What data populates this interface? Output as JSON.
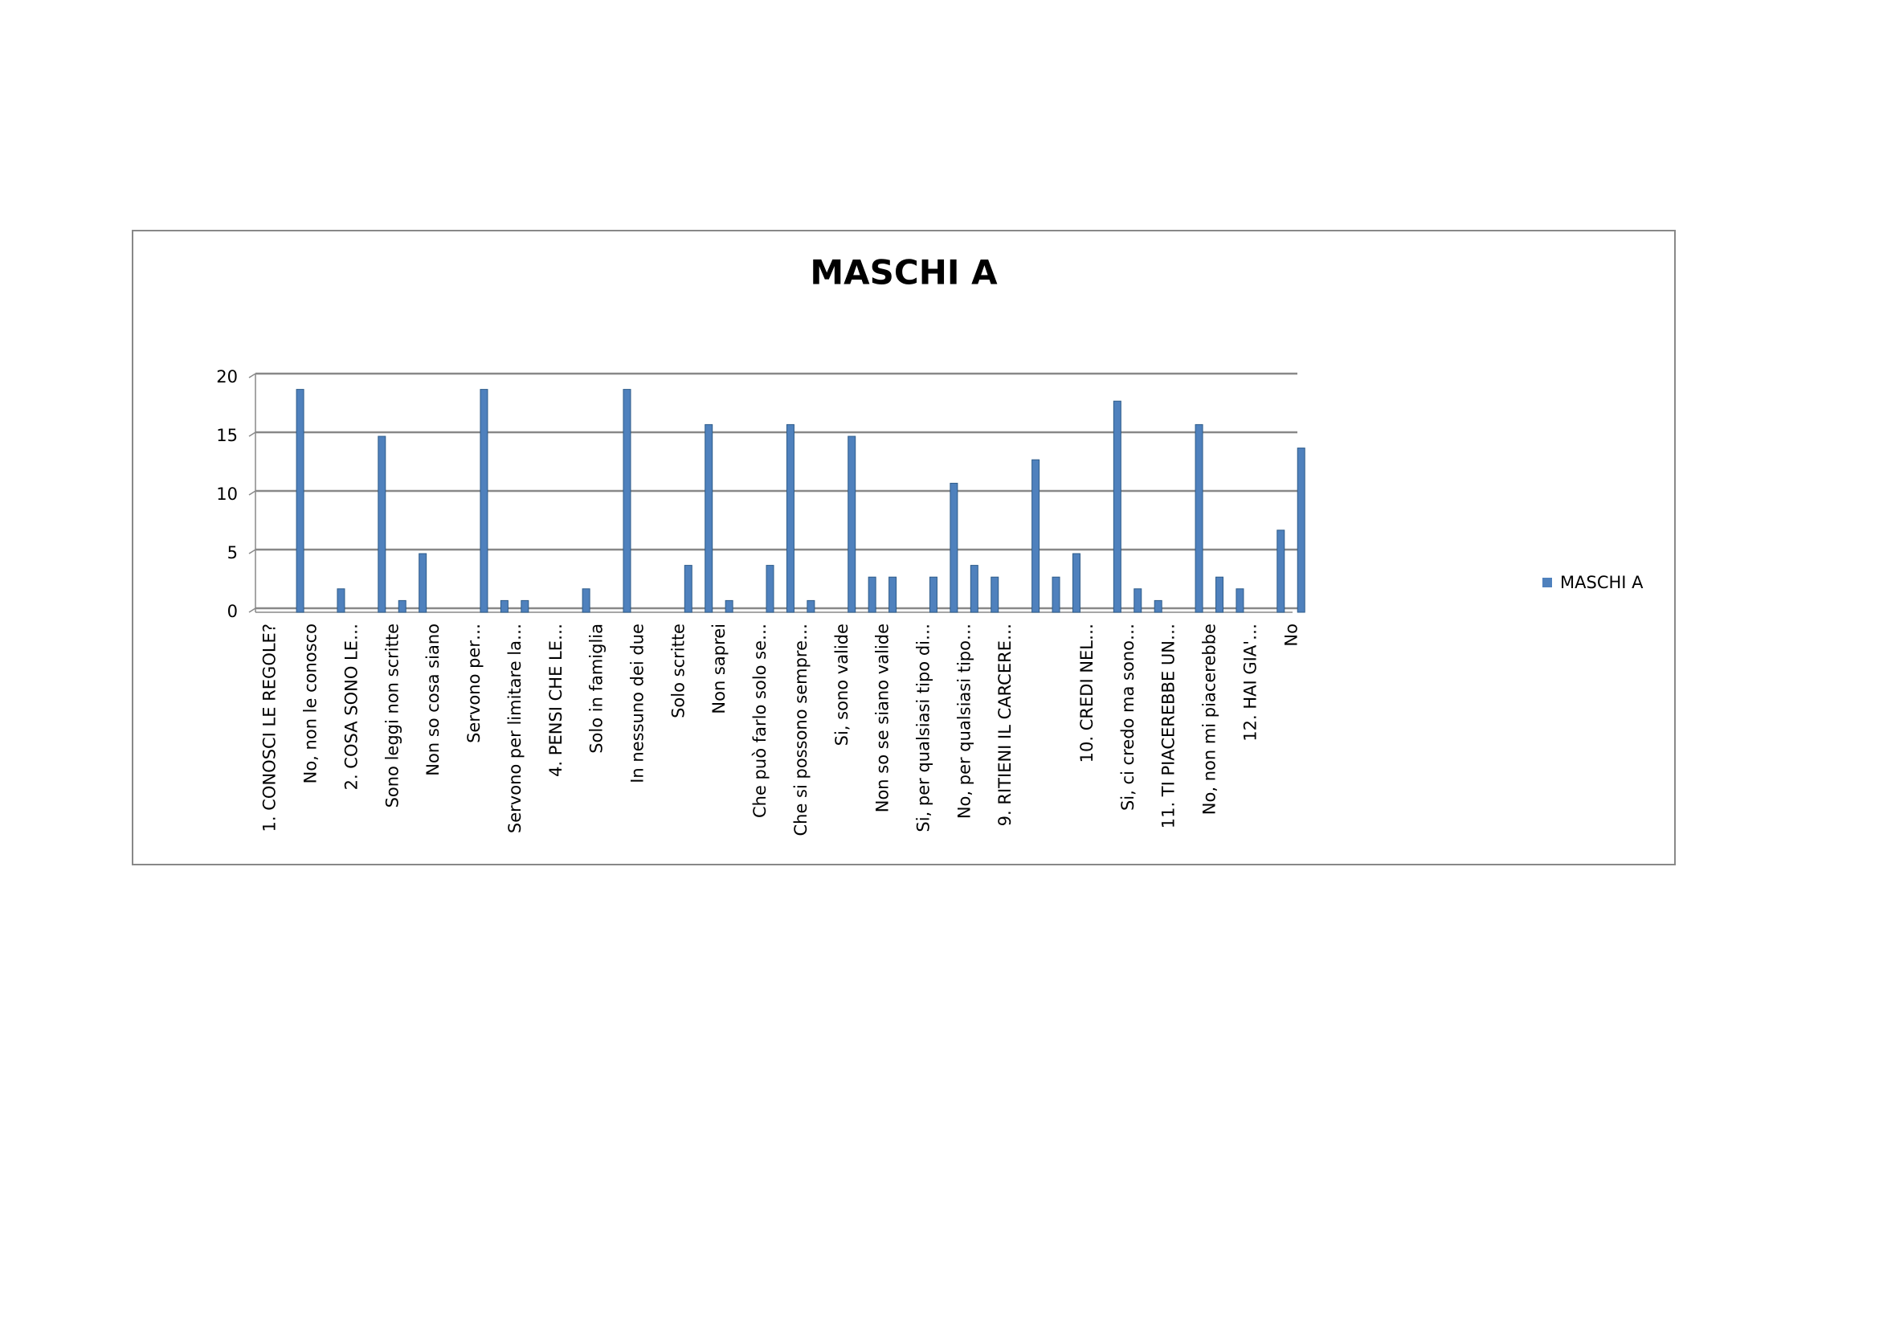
{
  "chart_data": {
    "type": "bar",
    "title": "MASCHI A",
    "categories": [
      "1. CONOSCI LE REGOLE?",
      null,
      "No, non le conosco",
      null,
      "2. COSA SONO LE…",
      null,
      "Sono leggi non scritte",
      null,
      "Non so cosa siano",
      null,
      "Servono per…",
      null,
      "Servono per limitare la…",
      null,
      "4. PENSI CHE LE…",
      null,
      "Solo in famiglia",
      null,
      "In nessuno dei due",
      null,
      "Solo scritte",
      null,
      "Non saprei",
      null,
      "Che può farlo solo se…",
      null,
      "Che si possono sempre…",
      null,
      "Si, sono valide",
      null,
      "Non so se siano valide",
      null,
      "Si, per qualsiasi tipo di…",
      null,
      "No, per qualsiasi tipo…",
      null,
      "9. RITIENI IL CARCERE…",
      null,
      null,
      null,
      "10. CREDI NEL…",
      null,
      "Si, ci credo ma sono…",
      null,
      "11. TI PIACEREBBE UN…",
      null,
      "No, non mi piacerebbe",
      null,
      "12. HAI GIA'…",
      null,
      "No"
    ],
    "series": [
      {
        "name": "MASCHI A",
        "color": "#4f81bd",
        "values": [
          0,
          19,
          0,
          2,
          0,
          15,
          1,
          5,
          0,
          0,
          19,
          1,
          1,
          0,
          0,
          2,
          0,
          19,
          0,
          0,
          4,
          16,
          1,
          0,
          4,
          16,
          1,
          0,
          15,
          3,
          3,
          0,
          3,
          11,
          4,
          3,
          0,
          13,
          3,
          5,
          0,
          18,
          2,
          1,
          0,
          16,
          3,
          2,
          0,
          7,
          14
        ]
      }
    ],
    "ylim": [
      0,
      20
    ],
    "yticks": [
      0,
      5,
      10,
      15,
      20
    ],
    "grid": true,
    "legend": "right"
  }
}
